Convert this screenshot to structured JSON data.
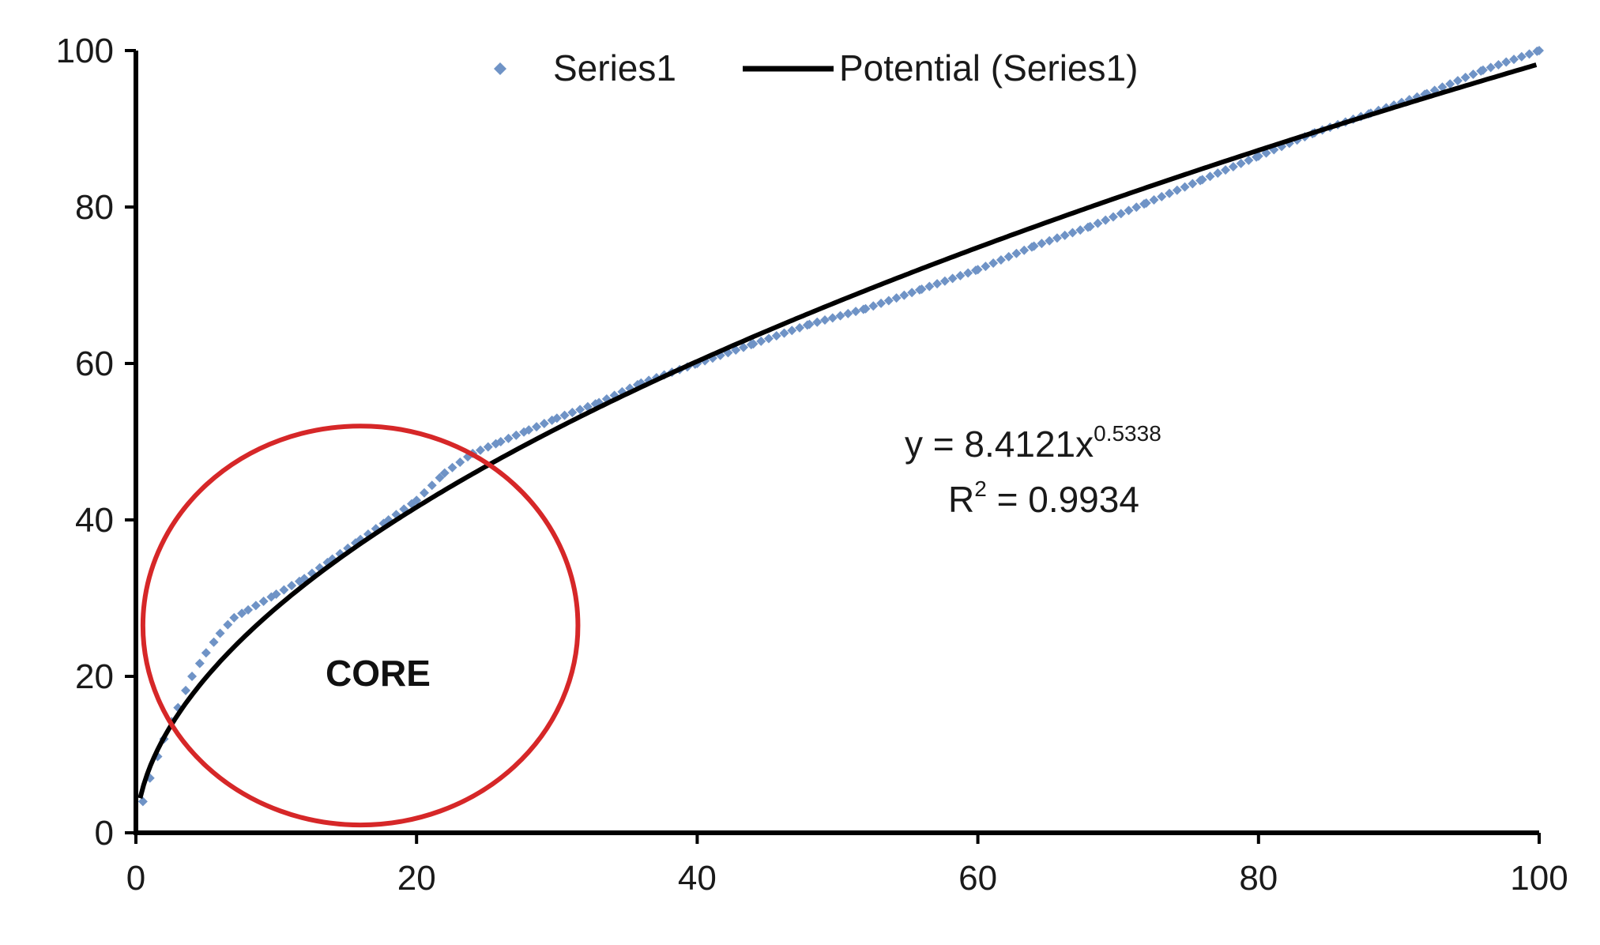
{
  "chart_data": {
    "type": "scatter",
    "title": "",
    "xlabel": "",
    "ylabel": "",
    "xlim": [
      0,
      100
    ],
    "ylim": [
      0,
      100
    ],
    "x_ticks": [
      "0",
      "20",
      "40",
      "60",
      "80",
      "100"
    ],
    "y_ticks": [
      "0",
      "20",
      "40",
      "60",
      "80",
      "100"
    ],
    "grid": false,
    "legend_position": "top-center",
    "series": [
      {
        "name": "Series1",
        "kind": "scatter",
        "color": "#6f93c6",
        "marker": "diamond",
        "x": [
          0.5,
          1,
          2,
          3,
          4,
          5,
          6,
          7,
          8,
          10,
          12,
          14,
          16,
          18,
          20,
          22,
          24,
          26,
          28,
          30,
          33,
          36,
          40,
          44,
          48,
          52,
          56,
          60,
          64,
          68,
          72,
          76,
          80,
          84,
          88,
          92,
          96,
          100
        ],
        "y": [
          4,
          7,
          12,
          16,
          20,
          23,
          25.5,
          27.5,
          28.5,
          30.5,
          32.5,
          35,
          37.5,
          40,
          42.5,
          46,
          48.5,
          50,
          51.5,
          53,
          55,
          57.5,
          60,
          62.5,
          65,
          67,
          69.5,
          72,
          75,
          77.5,
          80.5,
          83.5,
          86.5,
          89.5,
          92,
          94.5,
          97.5,
          100
        ]
      },
      {
        "name": "Potential (Series1)",
        "kind": "trendline",
        "color": "#000000",
        "equation": {
          "a": 8.4121,
          "b": 0.5338
        }
      }
    ],
    "annotations": {
      "equation_prefix": "y = 8.4121x",
      "equation_exponent": "0.5338",
      "r2_prefix": "R",
      "r2_exponent": "2",
      "r2_suffix": " = 0.9934",
      "core_label": "CORE",
      "core_circle": {
        "cx": 16,
        "cy": 26.5,
        "rx": 15.5,
        "ry": 25.5,
        "color": "#d62728"
      }
    }
  }
}
